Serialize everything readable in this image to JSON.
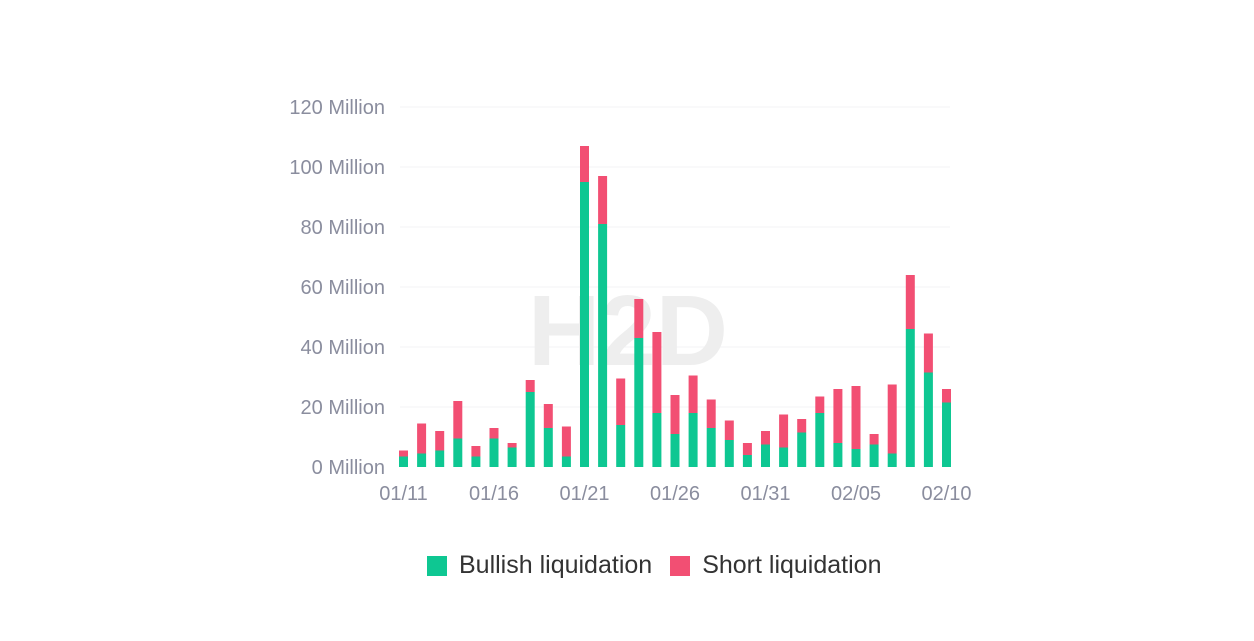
{
  "chart_data": {
    "type": "bar",
    "stacked": true,
    "title": "",
    "xlabel": "",
    "ylabel": "",
    "watermark": "H2D",
    "ylim": [
      0,
      120
    ],
    "y_ticks": [
      {
        "value": 0,
        "label": "0 Million"
      },
      {
        "value": 20,
        "label": "20 Million"
      },
      {
        "value": 40,
        "label": "40 Million"
      },
      {
        "value": 60,
        "label": "60 Million"
      },
      {
        "value": 80,
        "label": "80 Million"
      },
      {
        "value": 100,
        "label": "100 Million"
      },
      {
        "value": 120,
        "label": "120 Million"
      }
    ],
    "categories": [
      "01/11",
      "01/12",
      "01/13",
      "01/14",
      "01/15",
      "01/16",
      "01/17",
      "01/18",
      "01/19",
      "01/20",
      "01/21",
      "01/22",
      "01/23",
      "01/24",
      "01/25",
      "01/26",
      "01/27",
      "01/28",
      "01/29",
      "01/30",
      "01/31",
      "02/01",
      "02/02",
      "02/03",
      "02/04",
      "02/05",
      "02/06",
      "02/07",
      "02/08",
      "02/09",
      "02/10"
    ],
    "x_tick_labels": [
      "01/11",
      "01/16",
      "01/21",
      "01/26",
      "01/31",
      "02/05",
      "02/10"
    ],
    "x_tick_indices": [
      0,
      5,
      10,
      15,
      20,
      25,
      30
    ],
    "legend_position": "bottom-center",
    "series": [
      {
        "name": "Bullish liquidation",
        "color": "#0ec792",
        "values": [
          3.5,
          4.5,
          5.5,
          9.5,
          3.5,
          9.5,
          6.5,
          25,
          13,
          3.5,
          95,
          81,
          14,
          43,
          18,
          11,
          18,
          13,
          9,
          4,
          7.5,
          6.5,
          11.5,
          18,
          8,
          6,
          7.5,
          4.5,
          46,
          31.5,
          21.5
        ]
      },
      {
        "name": "Short liquidation",
        "color": "#f24f73",
        "values": [
          2,
          10,
          6.5,
          12.5,
          3.5,
          3.5,
          1.5,
          4,
          8,
          10,
          12,
          16,
          15.5,
          13,
          27,
          13,
          12.5,
          9.5,
          6.5,
          4,
          4.5,
          11,
          4.5,
          5.5,
          18,
          21,
          3.5,
          23,
          18,
          13,
          4.5
        ]
      }
    ]
  }
}
